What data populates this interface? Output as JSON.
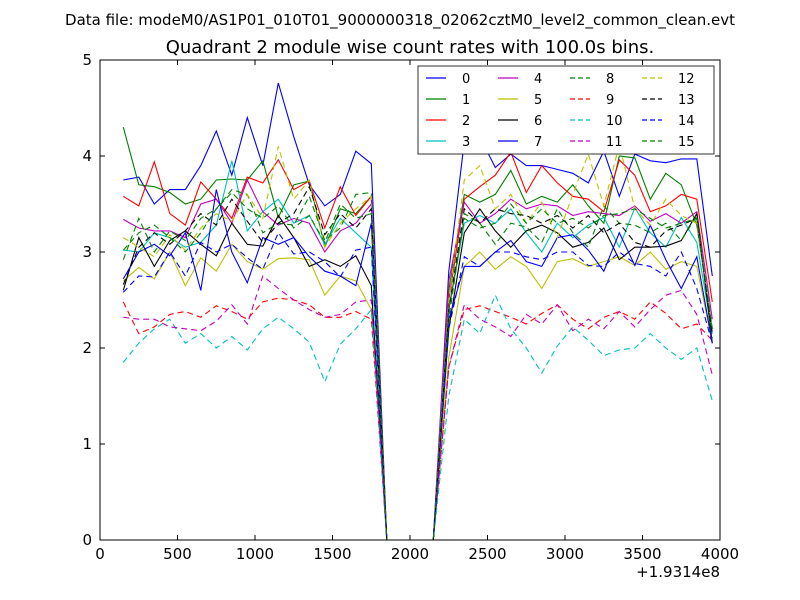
{
  "suptitle": "Data file: modeM0/AS1P01_010T01_9000000318_02062cztM0_level2_common_clean.evt",
  "chart_data": {
    "type": "line",
    "title": "Quadrant 2 module wise count rates with 100.0s bins.",
    "xlabel": "",
    "ylabel": "",
    "x_offset_label": "+1.9314e8",
    "xlim": [
      0,
      4000
    ],
    "ylim": [
      0,
      5
    ],
    "xticks": [
      0,
      500,
      1000,
      1500,
      2000,
      2500,
      3000,
      3500,
      4000
    ],
    "yticks": [
      0,
      1,
      2,
      3,
      4,
      5
    ],
    "xtick_labels": [
      "0",
      "500",
      "1000",
      "1500",
      "2000",
      "2500",
      "3000",
      "3500",
      "4000"
    ],
    "ytick_labels": [
      "0",
      "1",
      "2",
      "3",
      "4",
      "5"
    ],
    "grid": false,
    "legend_position": "top-right",
    "legend_columns": 4,
    "x": [
      150,
      250,
      350,
      450,
      550,
      650,
      750,
      850,
      950,
      1050,
      1150,
      1250,
      1350,
      1450,
      1550,
      1650,
      1750,
      1850,
      1950,
      2050,
      2150,
      2250,
      2350,
      2450,
      2550,
      2650,
      2750,
      2850,
      2950,
      3050,
      3150,
      3250,
      3350,
      3450,
      3550,
      3650,
      3750,
      3850,
      3950
    ],
    "series": [
      {
        "name": "0",
        "color": "#0000ff",
        "dash": "solid",
        "values": [
          3.75,
          3.78,
          3.5,
          3.65,
          3.65,
          3.9,
          4.26,
          3.8,
          4.4,
          3.9,
          4.76,
          4.2,
          3.7,
          3.48,
          3.6,
          4.05,
          3.92,
          0.0,
          0.0,
          0.0,
          0.0,
          2.8,
          4.15,
          4.2,
          3.88,
          4.02,
          3.9,
          3.9,
          3.86,
          3.82,
          3.72,
          4.05,
          3.58,
          4.02,
          3.95,
          3.93,
          3.97,
          3.97,
          2.75
        ]
      },
      {
        "name": "1",
        "color": "#008000",
        "dash": "solid",
        "values": [
          4.3,
          3.7,
          3.68,
          3.62,
          3.5,
          3.55,
          3.75,
          3.76,
          3.75,
          3.95,
          3.36,
          3.7,
          3.74,
          3.05,
          3.45,
          3.4,
          3.58,
          0.0,
          0.0,
          0.0,
          0.0,
          2.6,
          3.6,
          3.52,
          3.6,
          3.85,
          3.5,
          3.58,
          3.52,
          3.7,
          3.48,
          3.3,
          4.0,
          3.98,
          3.55,
          3.82,
          3.7,
          3.28,
          2.2
        ]
      },
      {
        "name": "2",
        "color": "#ff0000",
        "dash": "solid",
        "values": [
          3.58,
          3.48,
          3.94,
          3.4,
          3.28,
          3.73,
          3.55,
          3.35,
          3.78,
          3.72,
          3.96,
          3.65,
          3.74,
          3.25,
          3.68,
          3.38,
          3.58,
          0.0,
          0.0,
          0.0,
          0.0,
          2.5,
          3.55,
          3.68,
          3.8,
          4.04,
          3.62,
          3.9,
          3.72,
          3.58,
          3.55,
          3.42,
          3.96,
          3.8,
          3.42,
          3.48,
          3.6,
          3.55,
          2.48
        ]
      },
      {
        "name": "3",
        "color": "#00bfbf",
        "dash": "solid",
        "values": [
          3.02,
          3.0,
          3.2,
          3.15,
          3.05,
          3.1,
          3.28,
          3.95,
          3.22,
          3.42,
          3.55,
          3.3,
          3.38,
          3.08,
          3.35,
          3.2,
          3.05,
          0.0,
          0.0,
          0.0,
          0.0,
          2.4,
          3.3,
          3.38,
          3.3,
          3.45,
          3.2,
          3.0,
          3.3,
          3.15,
          3.28,
          3.36,
          3.05,
          3.46,
          3.2,
          3.05,
          3.36,
          3.1,
          2.15
        ]
      },
      {
        "name": "4",
        "color": "#bf00bf",
        "dash": "solid",
        "values": [
          3.34,
          3.25,
          3.22,
          3.22,
          3.15,
          3.5,
          3.55,
          3.3,
          3.75,
          3.42,
          3.28,
          3.35,
          3.3,
          3.0,
          3.22,
          3.3,
          3.5,
          0.0,
          0.0,
          0.0,
          0.0,
          2.7,
          3.52,
          3.3,
          3.4,
          3.55,
          3.45,
          3.5,
          3.48,
          3.38,
          3.42,
          3.4,
          3.38,
          3.48,
          3.32,
          3.4,
          3.3,
          3.42,
          2.3
        ]
      },
      {
        "name": "5",
        "color": "#bfbf00",
        "dash": "solid",
        "values": [
          2.7,
          2.84,
          2.72,
          3.0,
          2.65,
          2.94,
          2.8,
          3.08,
          2.9,
          2.82,
          2.93,
          2.94,
          2.92,
          2.55,
          2.75,
          2.7,
          2.4,
          0.0,
          0.0,
          0.0,
          0.0,
          1.9,
          2.85,
          3.0,
          2.82,
          2.95,
          2.85,
          2.62,
          2.9,
          2.93,
          2.85,
          2.9,
          2.95,
          2.86,
          3.0,
          2.82,
          2.9,
          2.85,
          2.05
        ]
      },
      {
        "name": "6",
        "color": "#000000",
        "dash": "solid",
        "values": [
          2.6,
          3.15,
          2.85,
          3.12,
          3.22,
          3.08,
          2.96,
          3.3,
          3.08,
          3.06,
          3.38,
          3.15,
          2.85,
          2.92,
          2.85,
          2.96,
          2.65,
          0.0,
          0.0,
          0.0,
          0.0,
          2.2,
          3.2,
          3.45,
          3.22,
          3.05,
          3.22,
          3.28,
          3.2,
          3.05,
          3.1,
          3.25,
          2.92,
          3.05,
          3.05,
          3.06,
          3.12,
          3.4,
          2.05
        ]
      },
      {
        "name": "7",
        "color": "#0000ff",
        "dash": "solid",
        "values": [
          2.72,
          3.0,
          3.08,
          2.96,
          3.2,
          2.6,
          3.65,
          3.0,
          2.68,
          3.15,
          3.08,
          3.15,
          2.95,
          2.8,
          2.75,
          2.65,
          3.3,
          0.0,
          0.0,
          0.0,
          0.0,
          2.3,
          2.85,
          2.85,
          3.0,
          3.12,
          2.9,
          2.85,
          3.15,
          3.18,
          3.02,
          2.8,
          3.2,
          2.86,
          3.28,
          2.92,
          2.62,
          2.95,
          2.05
        ]
      },
      {
        "name": "8",
        "color": "#008000",
        "dash": "dashed",
        "values": [
          2.92,
          3.35,
          3.0,
          3.22,
          3.12,
          3.35,
          3.45,
          3.65,
          3.6,
          3.2,
          3.3,
          3.28,
          3.58,
          3.12,
          3.25,
          3.6,
          3.62,
          0.0,
          0.0,
          0.0,
          0.0,
          2.3,
          3.4,
          3.3,
          3.08,
          3.3,
          3.26,
          3.1,
          3.45,
          3.2,
          3.05,
          3.48,
          3.3,
          3.28,
          3.2,
          3.3,
          3.12,
          3.38,
          2.1
        ]
      },
      {
        "name": "9",
        "color": "#ff0000",
        "dash": "dashed",
        "values": [
          2.48,
          2.15,
          2.22,
          2.35,
          2.38,
          2.32,
          2.44,
          2.38,
          2.3,
          2.48,
          2.52,
          2.5,
          2.45,
          2.32,
          2.32,
          2.38,
          2.3,
          0.0,
          0.0,
          0.0,
          0.0,
          1.8,
          2.4,
          2.44,
          2.38,
          2.32,
          2.25,
          2.36,
          2.45,
          2.3,
          2.2,
          2.32,
          2.38,
          2.3,
          2.48,
          2.36,
          2.2,
          2.25,
          2.08
        ]
      },
      {
        "name": "10",
        "color": "#00bfbf",
        "dash": "dashed",
        "values": [
          1.85,
          2.05,
          2.2,
          2.3,
          2.05,
          2.15,
          2.0,
          2.12,
          1.98,
          2.2,
          2.32,
          2.2,
          2.06,
          1.65,
          2.04,
          2.2,
          2.4,
          0.0,
          0.0,
          0.0,
          0.0,
          1.5,
          2.3,
          2.15,
          2.55,
          2.2,
          2.0,
          1.74,
          2.02,
          2.22,
          2.08,
          1.92,
          1.98,
          2.0,
          2.15,
          2.0,
          1.88,
          2.0,
          1.45
        ]
      },
      {
        "name": "11",
        "color": "#bf00bf",
        "dash": "dashed",
        "values": [
          2.32,
          2.3,
          2.3,
          2.22,
          2.2,
          2.18,
          2.28,
          2.45,
          2.25,
          2.75,
          2.62,
          2.5,
          2.4,
          2.32,
          2.35,
          2.48,
          2.5,
          0.0,
          0.0,
          0.0,
          0.0,
          1.8,
          2.45,
          2.3,
          2.22,
          2.12,
          2.35,
          2.25,
          2.45,
          2.18,
          2.3,
          2.2,
          2.38,
          2.22,
          2.4,
          2.55,
          2.6,
          2.35,
          1.72
        ]
      },
      {
        "name": "12",
        "color": "#bfbf00",
        "dash": "dashed",
        "values": [
          3.15,
          3.05,
          2.95,
          3.18,
          3.02,
          3.25,
          3.4,
          3.32,
          3.6,
          3.35,
          4.1,
          3.55,
          3.75,
          3.05,
          3.3,
          3.45,
          3.58,
          0.0,
          0.0,
          0.0,
          0.0,
          2.5,
          3.75,
          3.9,
          3.45,
          3.6,
          3.3,
          3.52,
          3.15,
          3.6,
          4.02,
          3.48,
          4.12,
          3.45,
          3.28,
          3.55,
          3.38,
          3.3,
          2.2
        ]
      },
      {
        "name": "13",
        "color": "#000000",
        "dash": "dashed",
        "values": [
          2.66,
          3.05,
          3.2,
          3.08,
          3.22,
          3.4,
          3.28,
          3.55,
          3.32,
          3.1,
          3.3,
          3.4,
          3.68,
          3.18,
          3.4,
          3.25,
          3.45,
          0.0,
          0.0,
          0.0,
          0.0,
          2.4,
          3.45,
          3.3,
          3.45,
          3.4,
          3.38,
          3.3,
          3.38,
          3.25,
          3.38,
          3.2,
          3.3,
          3.1,
          3.05,
          3.22,
          3.28,
          3.35,
          2.15
        ]
      },
      {
        "name": "14",
        "color": "#0000ff",
        "dash": "dashed",
        "values": [
          2.58,
          2.75,
          2.74,
          3.0,
          2.75,
          3.1,
          3.0,
          3.08,
          2.94,
          2.82,
          3.2,
          2.98,
          3.0,
          2.9,
          2.74,
          3.02,
          3.05,
          0.0,
          0.0,
          0.0,
          0.0,
          2.2,
          2.95,
          2.85,
          3.0,
          3.0,
          2.95,
          2.92,
          3.0,
          3.0,
          2.86,
          2.85,
          3.0,
          2.88,
          2.85,
          2.75,
          3.0,
          2.62,
          2.05
        ]
      },
      {
        "name": "15",
        "color": "#008000",
        "dash": "dashed",
        "values": [
          3.02,
          3.2,
          3.28,
          3.15,
          3.0,
          3.2,
          3.45,
          3.62,
          3.45,
          3.35,
          3.48,
          3.25,
          3.38,
          3.1,
          3.5,
          3.35,
          3.4,
          0.0,
          0.0,
          0.0,
          0.0,
          2.4,
          3.35,
          3.25,
          3.3,
          3.5,
          3.3,
          3.45,
          3.3,
          3.35,
          3.25,
          3.38,
          3.4,
          3.45,
          3.35,
          3.25,
          3.3,
          3.35,
          2.2
        ]
      }
    ]
  }
}
